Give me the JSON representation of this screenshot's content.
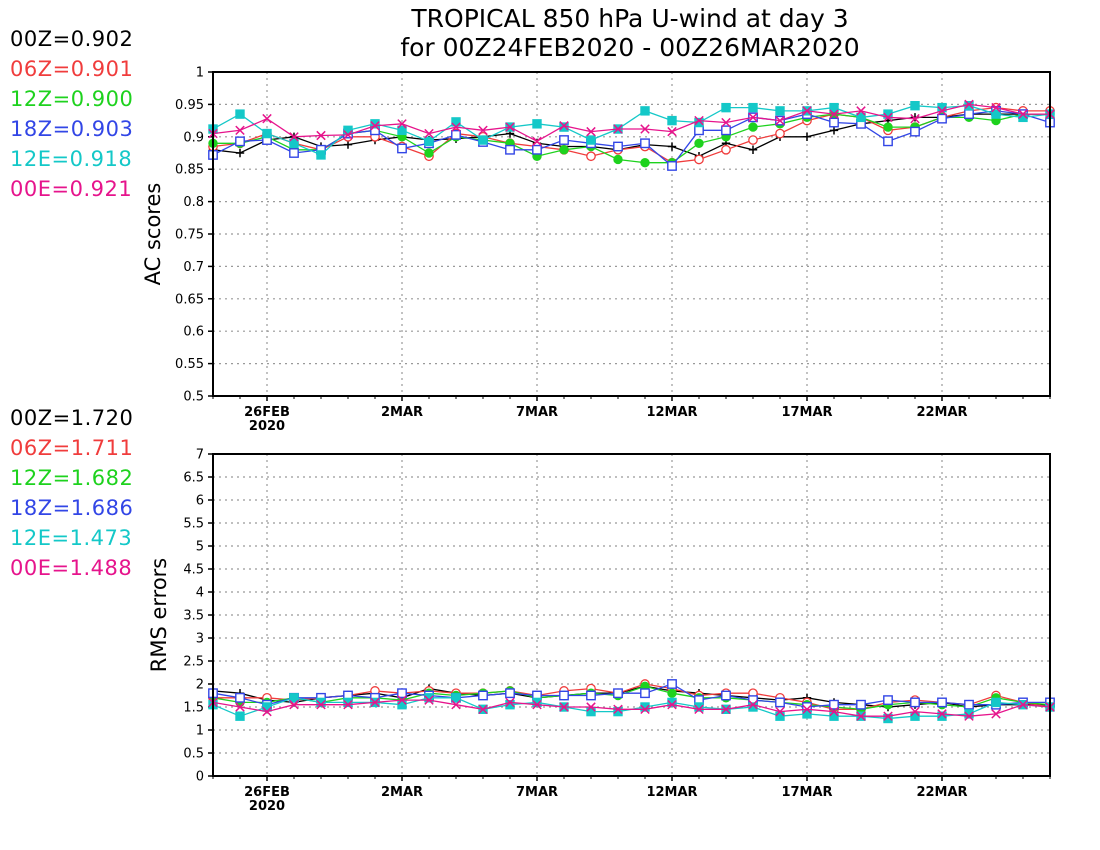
{
  "title_line1": "TROPICAL 850 hPa U-wind at day 3",
  "title_line2": "for 00Z24FEB2020 - 00Z26MAR2020",
  "x_ticks": [
    {
      "day": 2,
      "label": "26FEB",
      "sub": "2020"
    },
    {
      "day": 7,
      "label": "2MAR",
      "sub": ""
    },
    {
      "day": 12,
      "label": "7MAR",
      "sub": ""
    },
    {
      "day": 17,
      "label": "12MAR",
      "sub": ""
    },
    {
      "day": 22,
      "label": "17MAR",
      "sub": ""
    },
    {
      "day": 27,
      "label": "22MAR",
      "sub": ""
    }
  ],
  "series_style": [
    {
      "name": "00Z",
      "color": "#000000",
      "marker": "plus"
    },
    {
      "name": "06Z",
      "color": "#f03c3c",
      "marker": "open-circle"
    },
    {
      "name": "12Z",
      "color": "#1ed21e",
      "marker": "filled-circle"
    },
    {
      "name": "18Z",
      "color": "#3246e6",
      "marker": "open-square"
    },
    {
      "name": "12E",
      "color": "#14c8c8",
      "marker": "filled-square"
    },
    {
      "name": "00E",
      "color": "#e6148c",
      "marker": "cross"
    }
  ],
  "legend_ac": [
    {
      "text": "00Z=0.902",
      "color": "#000000"
    },
    {
      "text": "06Z=0.901",
      "color": "#f03c3c"
    },
    {
      "text": "12Z=0.900",
      "color": "#1ed21e"
    },
    {
      "text": "18Z=0.903",
      "color": "#3246e6"
    },
    {
      "text": "12E=0.918",
      "color": "#14c8c8"
    },
    {
      "text": "00E=0.921",
      "color": "#e6148c"
    }
  ],
  "legend_rms": [
    {
      "text": "00Z=1.720",
      "color": "#000000"
    },
    {
      "text": "06Z=1.711",
      "color": "#f03c3c"
    },
    {
      "text": "12Z=1.682",
      "color": "#1ed21e"
    },
    {
      "text": "18Z=1.686",
      "color": "#3246e6"
    },
    {
      "text": "12E=1.473",
      "color": "#14c8c8"
    },
    {
      "text": "00E=1.488",
      "color": "#e6148c"
    }
  ],
  "chart_data": [
    {
      "type": "line",
      "ylabel": "AC scores",
      "ylim": [
        0.5,
        1
      ],
      "yticks": [
        "0.5",
        "0.55",
        "0.6",
        "0.65",
        "0.7",
        "0.75",
        "0.8",
        "0.85",
        "0.9",
        "0.95",
        "1"
      ],
      "xlim_days": [
        0,
        31
      ],
      "x_days": [
        0,
        1,
        2,
        3,
        4,
        5,
        6,
        7,
        8,
        9,
        10,
        11,
        12,
        13,
        14,
        15,
        16,
        17,
        18,
        19,
        20,
        21,
        22,
        23,
        24,
        25,
        26,
        27,
        28,
        29,
        30,
        31
      ],
      "grid": "dotted",
      "series": [
        {
          "name": "00Z",
          "values": [
            0.88,
            0.875,
            0.895,
            0.9,
            0.885,
            0.888,
            0.895,
            0.9,
            0.895,
            0.897,
            0.9,
            0.905,
            0.89,
            0.885,
            0.885,
            0.88,
            0.888,
            0.885,
            0.87,
            0.89,
            0.88,
            0.9,
            0.9,
            0.91,
            0.92,
            0.925,
            0.93,
            0.93,
            0.935,
            0.935,
            0.935,
            0.935
          ]
        },
        {
          "name": "06Z",
          "values": [
            0.885,
            0.89,
            0.905,
            0.89,
            0.88,
            0.9,
            0.9,
            0.885,
            0.87,
            0.905,
            0.9,
            0.89,
            0.885,
            0.88,
            0.87,
            0.88,
            0.885,
            0.86,
            0.865,
            0.88,
            0.895,
            0.905,
            0.925,
            0.935,
            0.93,
            0.91,
            0.915,
            0.93,
            0.94,
            0.945,
            0.94,
            0.94
          ]
        },
        {
          "name": "12Z",
          "values": [
            0.89,
            0.89,
            0.9,
            0.88,
            0.88,
            0.905,
            0.91,
            0.9,
            0.875,
            0.9,
            0.895,
            0.89,
            0.87,
            0.88,
            0.885,
            0.865,
            0.86,
            0.86,
            0.89,
            0.9,
            0.915,
            0.92,
            0.93,
            0.935,
            0.93,
            0.915,
            0.915,
            0.93,
            0.93,
            0.925,
            0.935,
            0.935
          ]
        },
        {
          "name": "18Z",
          "values": [
            0.872,
            0.893,
            0.895,
            0.875,
            0.88,
            0.905,
            0.91,
            0.882,
            0.89,
            0.903,
            0.892,
            0.88,
            0.88,
            0.895,
            0.89,
            0.885,
            0.89,
            0.855,
            0.91,
            0.91,
            0.93,
            0.925,
            0.935,
            0.922,
            0.92,
            0.893,
            0.908,
            0.928,
            0.935,
            0.94,
            0.935,
            0.922
          ]
        },
        {
          "name": "12E",
          "values": [
            0.912,
            0.935,
            0.905,
            0.89,
            0.872,
            0.91,
            0.92,
            0.91,
            0.893,
            0.923,
            0.895,
            0.915,
            0.92,
            0.915,
            0.895,
            0.912,
            0.94,
            0.925,
            0.922,
            0.945,
            0.945,
            0.94,
            0.94,
            0.945,
            0.93,
            0.935,
            0.948,
            0.945,
            0.948,
            0.935,
            0.93,
            0.935
          ]
        },
        {
          "name": "00E",
          "values": [
            0.905,
            0.91,
            0.928,
            0.9,
            0.902,
            0.903,
            0.917,
            0.92,
            0.905,
            0.915,
            0.91,
            0.915,
            0.893,
            0.917,
            0.908,
            0.912,
            0.912,
            0.908,
            0.925,
            0.922,
            0.93,
            0.925,
            0.94,
            0.935,
            0.94,
            0.93,
            0.928,
            0.94,
            0.95,
            0.945,
            0.935,
            0.935
          ]
        }
      ]
    },
    {
      "type": "line",
      "ylabel": "RMS errors",
      "ylim": [
        0,
        7
      ],
      "yticks": [
        "0",
        "0.5",
        "1",
        "1.5",
        "2",
        "2.5",
        "3",
        "3.5",
        "4",
        "4.5",
        "5",
        "5.5",
        "6",
        "6.5",
        "7"
      ],
      "xlim_days": [
        0,
        31
      ],
      "x_days": [
        0,
        1,
        2,
        3,
        4,
        5,
        6,
        7,
        8,
        9,
        10,
        11,
        12,
        13,
        14,
        15,
        16,
        17,
        18,
        19,
        20,
        21,
        22,
        23,
        24,
        25,
        26,
        27,
        28,
        29,
        30,
        31
      ],
      "grid": "dotted",
      "series": [
        {
          "name": "00Z",
          "values": [
            1.85,
            1.8,
            1.65,
            1.6,
            1.7,
            1.75,
            1.8,
            1.7,
            1.9,
            1.8,
            1.75,
            1.8,
            1.7,
            1.75,
            1.8,
            1.8,
            1.95,
            1.85,
            1.8,
            1.75,
            1.7,
            1.65,
            1.7,
            1.6,
            1.55,
            1.5,
            1.55,
            1.6,
            1.5,
            1.55,
            1.55,
            1.55
          ]
        },
        {
          "name": "06Z",
          "values": [
            1.7,
            1.7,
            1.7,
            1.65,
            1.7,
            1.75,
            1.85,
            1.8,
            1.85,
            1.8,
            1.8,
            1.85,
            1.75,
            1.85,
            1.9,
            1.8,
            2.0,
            1.9,
            1.75,
            1.8,
            1.8,
            1.7,
            1.6,
            1.45,
            1.45,
            1.6,
            1.65,
            1.6,
            1.55,
            1.75,
            1.6,
            1.5
          ]
        },
        {
          "name": "12Z",
          "values": [
            1.7,
            1.6,
            1.6,
            1.7,
            1.6,
            1.7,
            1.7,
            1.65,
            1.8,
            1.75,
            1.8,
            1.85,
            1.7,
            1.75,
            1.8,
            1.75,
            1.95,
            1.8,
            1.7,
            1.7,
            1.65,
            1.6,
            1.55,
            1.5,
            1.45,
            1.55,
            1.6,
            1.55,
            1.5,
            1.7,
            1.6,
            1.55
          ]
        },
        {
          "name": "18Z",
          "values": [
            1.8,
            1.7,
            1.55,
            1.7,
            1.7,
            1.75,
            1.7,
            1.8,
            1.75,
            1.7,
            1.75,
            1.8,
            1.75,
            1.75,
            1.75,
            1.8,
            1.8,
            2.0,
            1.65,
            1.75,
            1.65,
            1.6,
            1.5,
            1.55,
            1.55,
            1.65,
            1.6,
            1.6,
            1.55,
            1.55,
            1.6,
            1.6
          ]
        },
        {
          "name": "12E",
          "values": [
            1.55,
            1.3,
            1.5,
            1.7,
            1.6,
            1.6,
            1.6,
            1.55,
            1.7,
            1.7,
            1.45,
            1.55,
            1.6,
            1.5,
            1.4,
            1.4,
            1.5,
            1.6,
            1.5,
            1.45,
            1.5,
            1.3,
            1.35,
            1.3,
            1.3,
            1.25,
            1.3,
            1.3,
            1.35,
            1.6,
            1.55,
            1.5
          ]
        },
        {
          "name": "00E",
          "values": [
            1.6,
            1.5,
            1.4,
            1.55,
            1.55,
            1.55,
            1.6,
            1.65,
            1.65,
            1.55,
            1.45,
            1.6,
            1.55,
            1.5,
            1.5,
            1.45,
            1.45,
            1.55,
            1.45,
            1.45,
            1.55,
            1.4,
            1.45,
            1.4,
            1.3,
            1.3,
            1.4,
            1.35,
            1.3,
            1.35,
            1.55,
            1.5
          ]
        }
      ]
    }
  ]
}
